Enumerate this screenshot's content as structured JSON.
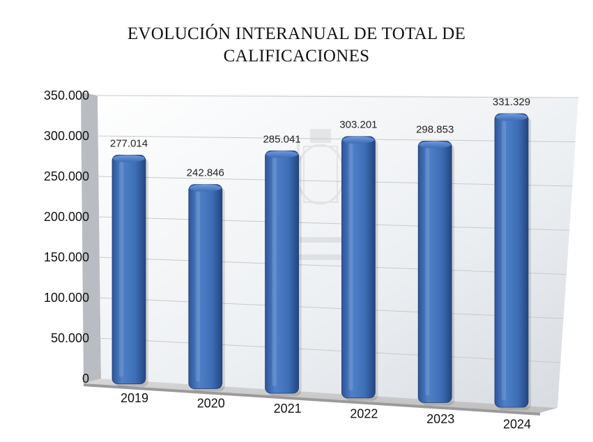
{
  "chart_data": {
    "type": "bar",
    "title_lines": [
      "EVOLUCIÓN INTERANUAL DE TOTAL DE",
      "CALIFICACIONES"
    ],
    "categories": [
      "2019",
      "2020",
      "2021",
      "2022",
      "2023",
      "2024"
    ],
    "values": [
      277014,
      242846,
      285041,
      303201,
      298853,
      331329
    ],
    "value_labels": [
      "277.014",
      "242.846",
      "285.041",
      "303.201",
      "298.853",
      "331.329"
    ],
    "y_tick_labels": [
      "0",
      "50.000",
      "100.000",
      "150.000",
      "200.000",
      "250.000",
      "300.000",
      "350.000"
    ],
    "ylim": [
      0,
      350000
    ],
    "xlabel": "",
    "ylabel": "",
    "grid": true,
    "legend": "none",
    "bar_color": "#4472C4"
  }
}
